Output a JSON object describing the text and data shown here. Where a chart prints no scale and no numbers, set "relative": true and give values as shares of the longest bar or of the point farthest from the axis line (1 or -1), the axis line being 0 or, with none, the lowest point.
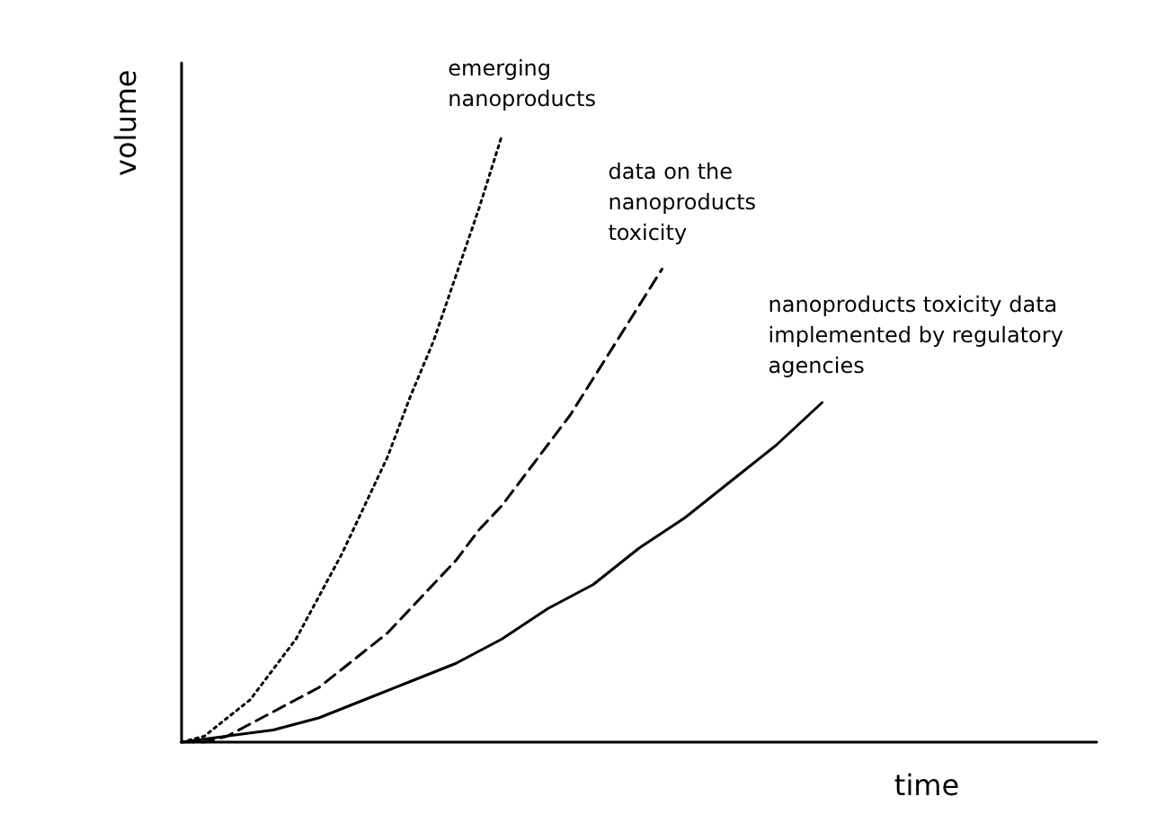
{
  "chart_data": {
    "type": "line",
    "relative": true,
    "xlabel": "time",
    "ylabel": "volume",
    "categories": [
      null,
      null,
      null,
      null,
      null,
      null,
      null,
      null,
      null,
      null,
      null,
      null,
      null,
      null,
      null,
      null,
      null,
      null,
      null,
      null,
      null,
      null,
      null,
      null,
      null,
      null,
      null,
      null,
      null,
      null,
      null,
      null,
      null,
      null,
      null,
      null,
      null,
      null,
      null,
      null,
      null
    ],
    "series": [
      {
        "name": "emerging nanoproducts",
        "color": "#000000",
        "line_style": "dotted",
        "values": [
          0,
          0.01,
          0.04,
          0.07,
          0.12,
          0.17,
          0.24,
          0.31,
          0.39,
          0.47,
          0.57,
          0.66,
          0.77,
          0.88,
          1,
          null,
          null,
          null,
          null,
          null,
          null,
          null,
          null,
          null,
          null,
          null,
          null,
          null,
          null,
          null,
          null,
          null,
          null,
          null,
          null,
          null,
          null,
          null,
          null,
          null,
          null
        ]
      },
      {
        "name": "data on the nanoproducts toxicity",
        "color": "#000000",
        "line_style": "dashed",
        "values": [
          0,
          0,
          0.01,
          0.03,
          0.05,
          0.07,
          0.09,
          0.12,
          0.15,
          0.18,
          0.22,
          0.26,
          0.3,
          0.35,
          0.39,
          0.44,
          0.49,
          0.54,
          0.6,
          0.66,
          0.72,
          0.78,
          null,
          null,
          null,
          null,
          null,
          null,
          null,
          null,
          null,
          null,
          null,
          null,
          null,
          null,
          null,
          null,
          null,
          null,
          null
        ]
      },
      {
        "name": "nanoproducts toxicity data implemented by regulatory agencies",
        "color": "#000000",
        "line_style": "solid",
        "values": [
          0,
          null,
          0.01,
          null,
          0.02,
          null,
          0.04,
          null,
          0.07,
          null,
          0.1,
          null,
          0.13,
          null,
          0.17,
          null,
          0.22,
          null,
          0.26,
          null,
          0.32,
          null,
          0.37,
          null,
          0.43,
          null,
          0.49,
          null,
          0.56,
          null,
          null,
          null,
          null,
          null,
          null,
          null,
          null,
          null,
          null,
          null,
          null
        ]
      }
    ],
    "marker": "none",
    "grid": false,
    "legend": false
  }
}
